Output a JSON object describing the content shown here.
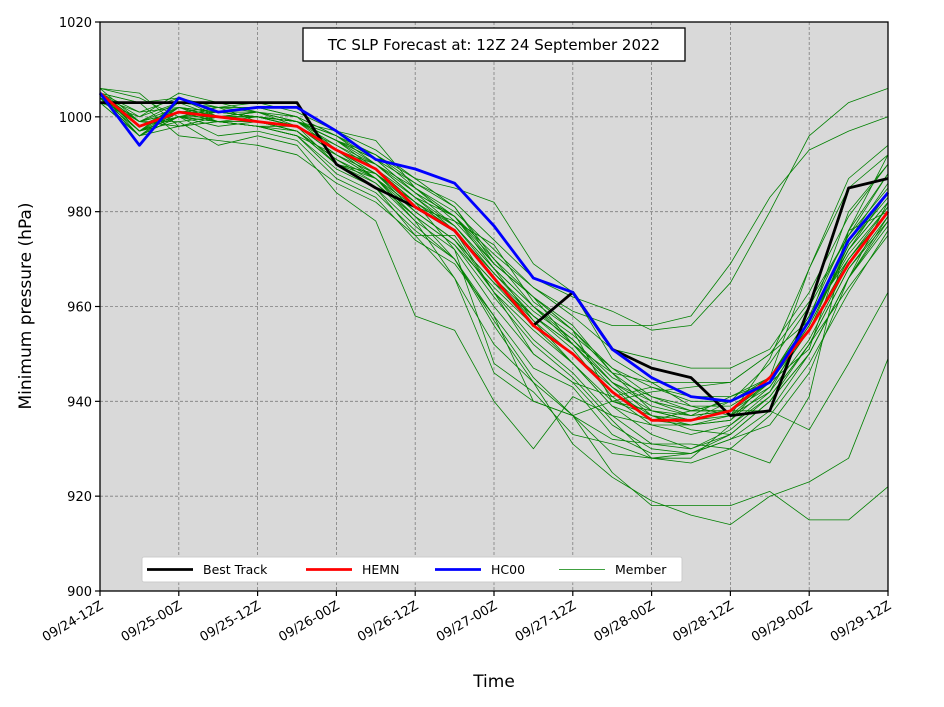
{
  "chart_data": {
    "type": "line",
    "title": "TC SLP Forecast at: 12Z 24 September 2022",
    "xlabel": "Time",
    "ylabel": "Minimum pressure (hPa)",
    "ylim": [
      900,
      1020
    ],
    "yticks": [
      900,
      920,
      940,
      960,
      980,
      1000,
      1020
    ],
    "x_ticks": [
      "09/24-12Z",
      "09/25-00Z",
      "09/25-12Z",
      "09/26-00Z",
      "09/26-12Z",
      "09/27-00Z",
      "09/27-12Z",
      "09/28-00Z",
      "09/28-12Z",
      "09/29-00Z",
      "09/29-12Z"
    ],
    "x_step_hours": 6,
    "grid": true,
    "legend_position": "bottom-left",
    "colors": {
      "background": "#d9d9d9",
      "best_track": "#000000",
      "hemn": "#ff0000",
      "hc00": "#0000ff",
      "member": "#008000"
    },
    "series": [
      {
        "name": "Best Track",
        "role": "best",
        "values": [
          1003,
          1003,
          1003,
          1003,
          1003,
          1003,
          990,
          985,
          981,
          976,
          966,
          956,
          963,
          951,
          947,
          945,
          937,
          938,
          960,
          985,
          987
        ]
      },
      {
        "name": "HEMN",
        "role": "hemn",
        "values": [
          1005,
          998,
          1001,
          1000,
          999,
          998,
          993,
          989,
          981,
          976,
          966,
          956,
          950,
          942,
          936,
          936,
          938,
          945,
          955,
          969,
          980
        ]
      },
      {
        "name": "HC00",
        "role": "hc00",
        "values": [
          1005,
          994,
          1004,
          1001,
          1002,
          1002,
          997,
          991,
          989,
          986,
          977,
          966,
          963,
          951,
          945,
          941,
          940,
          944,
          957,
          974,
          984
        ]
      },
      {
        "name": "Member",
        "role": "member",
        "values": [
          1006,
          1005,
          998,
          1000,
          1000,
          999,
          995,
          989,
          982,
          976,
          966,
          957,
          950,
          943,
          938,
          936,
          937,
          942,
          957,
          980,
          990
        ]
      },
      {
        "role": "member",
        "values": [
          1005,
          1000,
          1005,
          1003,
          1001,
          999,
          997,
          995,
          985,
          978,
          969,
          962,
          956,
          946,
          938,
          936,
          940,
          948,
          960,
          975,
          985
        ]
      },
      {
        "role": "member",
        "values": [
          1004,
          997,
          1000,
          1002,
          999,
          997,
          990,
          988,
          982,
          977,
          968,
          960,
          954,
          947,
          941,
          938,
          940,
          945,
          958,
          976,
          988
        ]
      },
      {
        "role": "member",
        "values": [
          1005,
          999,
          999,
          994,
          996,
          994,
          984,
          978,
          958,
          955,
          940,
          930,
          941,
          937,
          935,
          935,
          937,
          949,
          968,
          987,
          994
        ]
      },
      {
        "role": "member",
        "values": [
          1003,
          996,
          1002,
          999,
          998,
          996,
          989,
          985,
          975,
          975,
          963,
          955,
          948,
          940,
          937,
          936,
          938,
          944,
          956,
          972,
          984
        ]
      },
      {
        "role": "member",
        "values": [
          1004,
          998,
          1001,
          1000,
          1000,
          998,
          992,
          987,
          980,
          974,
          965,
          958,
          952,
          944,
          939,
          937,
          938,
          945,
          957,
          972,
          982
        ]
      },
      {
        "role": "member",
        "values": [
          1005,
          997,
          1000,
          999,
          998,
          997,
          991,
          986,
          979,
          973,
          964,
          956,
          950,
          942,
          937,
          935,
          936,
          943,
          955,
          970,
          980
        ]
      },
      {
        "role": "member",
        "values": [
          1004,
          999,
          1001,
          1001,
          1000,
          999,
          993,
          990,
          984,
          979,
          970,
          962,
          955,
          946,
          940,
          937,
          938,
          944,
          957,
          971,
          981
        ]
      },
      {
        "role": "member",
        "values": [
          1003,
          996,
          998,
          999,
          998,
          996,
          988,
          984,
          976,
          970,
          958,
          947,
          943,
          933,
          929,
          929,
          933,
          940,
          950,
          966,
          979
        ]
      },
      {
        "role": "member",
        "values": [
          1005,
          998,
          1002,
          1001,
          1000,
          998,
          992,
          988,
          980,
          974,
          963,
          953,
          946,
          937,
          931,
          930,
          934,
          941,
          952,
          968,
          979
        ]
      },
      {
        "role": "member",
        "values": [
          1004,
          997,
          999,
          1000,
          999,
          997,
          990,
          986,
          978,
          972,
          960,
          950,
          944,
          935,
          930,
          929,
          932,
          938,
          950,
          966,
          978
        ]
      },
      {
        "role": "member",
        "values": [
          1006,
          999,
          1001,
          1002,
          1001,
          998,
          993,
          989,
          982,
          976,
          967,
          958,
          951,
          941,
          935,
          933,
          935,
          942,
          953,
          969,
          980
        ]
      },
      {
        "role": "member",
        "values": [
          1004,
          998,
          1000,
          1000,
          999,
          997,
          991,
          987,
          979,
          973,
          962,
          952,
          945,
          936,
          928,
          927,
          930,
          937,
          948,
          963,
          976
        ]
      },
      {
        "role": "member",
        "values": [
          1005,
          997,
          1001,
          999,
          999,
          998,
          993,
          987,
          981,
          978,
          973,
          961,
          955,
          940,
          938,
          937,
          941,
          944,
          951,
          976,
          980
        ]
      },
      {
        "role": "member",
        "values": [
          1003,
          1000,
          1003,
          1000,
          1001,
          1000,
          996,
          992,
          986,
          981,
          970,
          960,
          953,
          944,
          937,
          934,
          933,
          940,
          952,
          968,
          978
        ]
      },
      {
        "role": "member",
        "values": [
          1005,
          997,
          1000,
          998,
          999,
          997,
          990,
          985,
          977,
          970,
          957,
          945,
          937,
          929,
          928,
          928,
          935,
          941,
          952,
          964,
          975
        ]
      },
      {
        "role": "member",
        "values": [
          1004,
          1001,
          1002,
          1000,
          1000,
          999,
          995,
          991,
          984,
          977,
          968,
          957,
          948,
          939,
          933,
          930,
          933,
          940,
          950,
          966,
          977
        ]
      },
      {
        "role": "member",
        "values": [
          1005,
          1003,
          996,
          995,
          994,
          992,
          986,
          982,
          975,
          966,
          952,
          944,
          931,
          924,
          919,
          916,
          914,
          920,
          923,
          928,
          949
        ]
      },
      {
        "role": "member",
        "values": [
          1006,
          1004,
          1000,
          1001,
          1000,
          998,
          990,
          987,
          979,
          970,
          956,
          944,
          937,
          925,
          918,
          918,
          918,
          921,
          915,
          915,
          922
        ]
      },
      {
        "role": "member",
        "values": [
          1004,
          996,
          1000,
          999,
          998,
          996,
          992,
          988,
          980,
          974,
          965,
          956,
          948,
          939,
          936,
          938,
          938,
          938,
          934,
          948,
          963
        ]
      },
      {
        "role": "member",
        "values": [
          1005,
          1001,
          1004,
          1002,
          1003,
          1001,
          997,
          993,
          987,
          985,
          982,
          969,
          963,
          949,
          944,
          944,
          944,
          950,
          961,
          975,
          988
        ]
      },
      {
        "role": "member",
        "values": [
          1005,
          998,
          1000,
          996,
          997,
          995,
          987,
          983,
          974,
          969,
          958,
          940,
          937,
          932,
          931,
          931,
          930,
          927,
          941,
          976,
          992
        ]
      },
      {
        "role": "member",
        "values": [
          1004,
          999,
          998,
          999,
          1000,
          999,
          996,
          990,
          983,
          976,
          963,
          950,
          944,
          941,
          943,
          941,
          941,
          945,
          968,
          985,
          992
        ]
      },
      {
        "role": "member",
        "values": [
          1005,
          1003,
          1004,
          1000,
          1001,
          999,
          995,
          992,
          987,
          981,
          969,
          962,
          952,
          946,
          944,
          939,
          937,
          944,
          955,
          973,
          984
        ]
      },
      {
        "role": "member",
        "values": [
          1004,
          999,
          1003,
          1002,
          1002,
          1000,
          996,
          992,
          985,
          979,
          969,
          962,
          955,
          947,
          943,
          940,
          940,
          945,
          957,
          973,
          983
        ]
      },
      {
        "role": "member",
        "values": [
          1005,
          997,
          1002,
          1000,
          1000,
          998,
          994,
          989,
          983,
          977,
          967,
          959,
          953,
          945,
          941,
          939,
          939,
          944,
          956,
          972,
          982
        ]
      },
      {
        "role": "member",
        "values": [
          1004,
          998,
          1001,
          999,
          998,
          998,
          993,
          988,
          981,
          976,
          966,
          958,
          952,
          944,
          940,
          938,
          938,
          943,
          955,
          970,
          980
        ]
      },
      {
        "role": "member",
        "values": [
          1005,
          999,
          1002,
          1001,
          1000,
          999,
          995,
          991,
          984,
          979,
          971,
          964,
          958,
          951,
          949,
          947,
          947,
          951,
          963,
          979,
          990
        ]
      },
      {
        "role": "member",
        "values": [
          1005,
          996,
          1001,
          1001,
          1001,
          999,
          996,
          991,
          986,
          982,
          974,
          966,
          962,
          959,
          955,
          956,
          965,
          980,
          996,
          1003,
          1006
        ]
      },
      {
        "role": "member",
        "values": [
          1004,
          998,
          1001,
          1000,
          1000,
          999,
          995,
          990,
          985,
          980,
          972,
          964,
          959,
          956,
          956,
          958,
          969,
          983,
          993,
          997,
          1000
        ]
      },
      {
        "role": "member",
        "values": [
          1005,
          997,
          1003,
          1002,
          1002,
          1000,
          993,
          988,
          982,
          972,
          948,
          942,
          933,
          931,
          928,
          929,
          932,
          935,
          946,
          966,
          982
        ]
      },
      {
        "role": "member",
        "values": [
          1004,
          996,
          1000,
          999,
          999,
          998,
          992,
          987,
          978,
          966,
          946,
          940,
          937,
          940,
          942,
          943,
          944,
          950,
          957,
          974,
          986
        ]
      },
      {
        "role": "member",
        "values": [
          1005,
          998,
          1001,
          1000,
          1000,
          999,
          994,
          990,
          983,
          979,
          968,
          960,
          952,
          943,
          936,
          935,
          936,
          945,
          958,
          970,
          981
        ]
      }
    ],
    "legend": [
      {
        "label": "Best Track",
        "role": "best"
      },
      {
        "label": "HEMN",
        "role": "hemn"
      },
      {
        "label": "HC00",
        "role": "hc00"
      },
      {
        "label": "Member",
        "role": "member"
      }
    ]
  }
}
